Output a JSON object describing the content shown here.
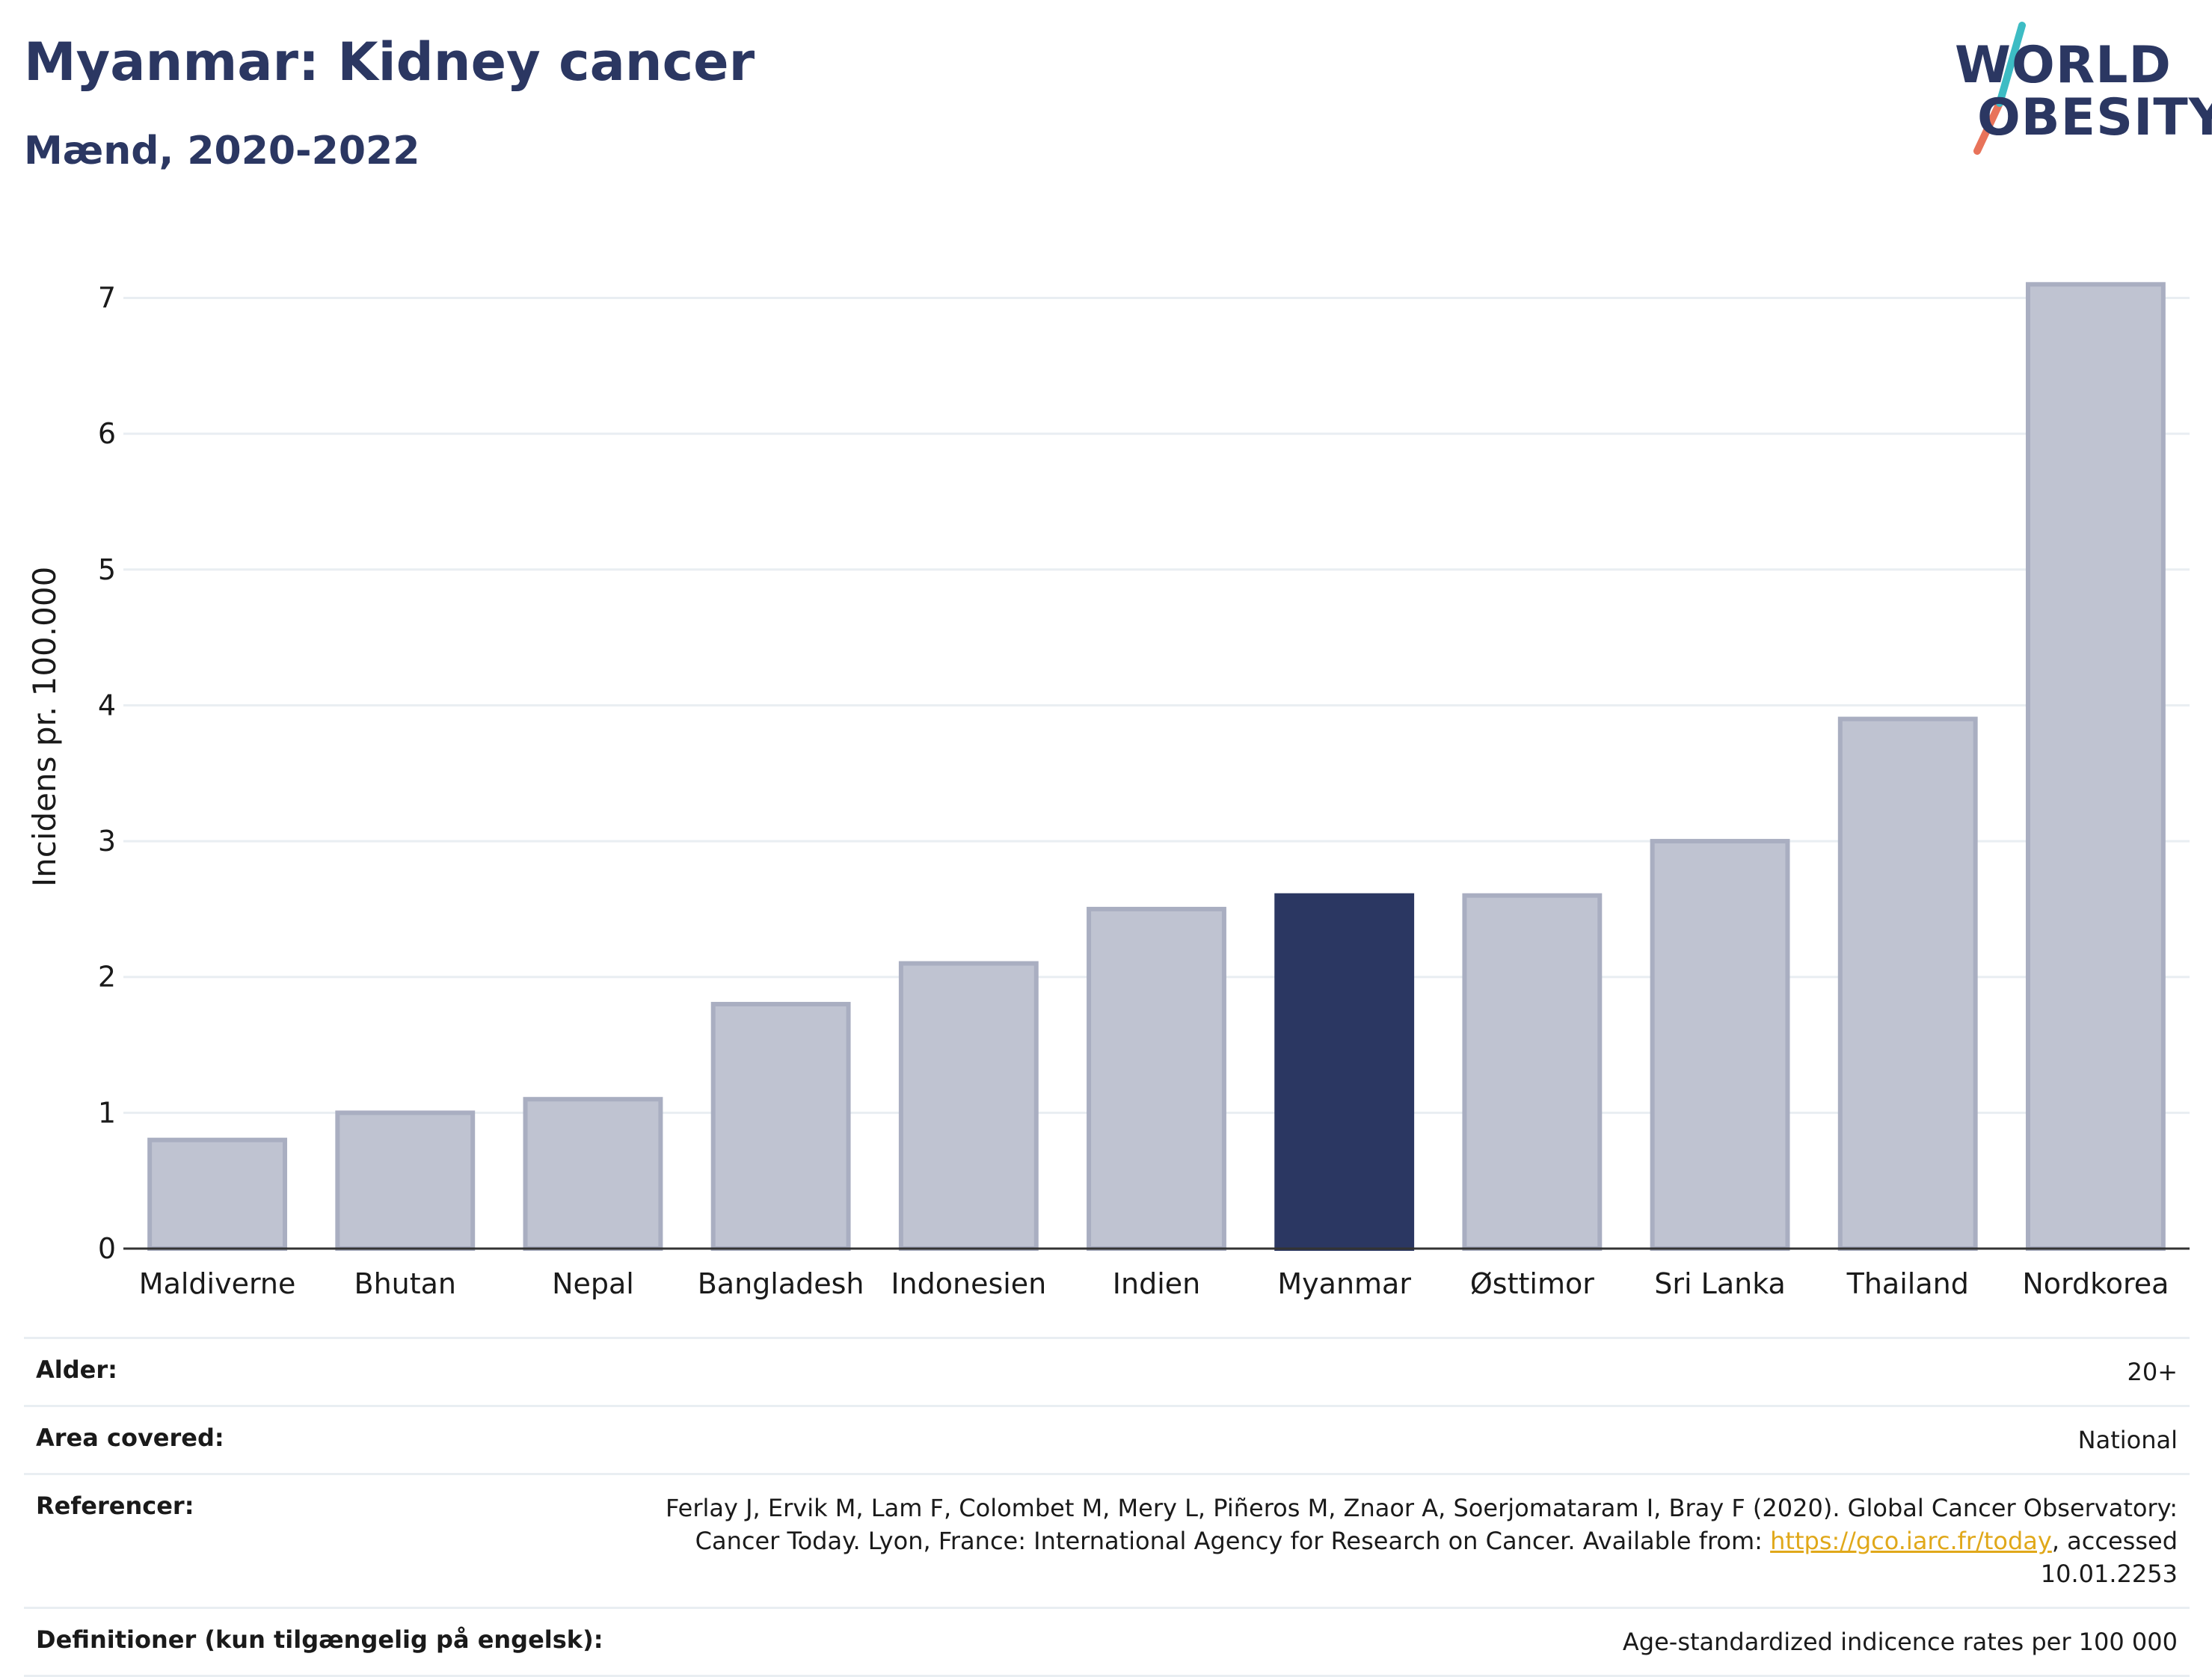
{
  "header": {
    "title": "Myanmar: Kidney cancer",
    "subtitle": "Mænd, 2020-2022"
  },
  "logo": {
    "line1": "WORLD",
    "line2": "OBESITY"
  },
  "chart_data": {
    "type": "bar",
    "categories": [
      "Maldiverne",
      "Bhutan",
      "Nepal",
      "Bangladesh",
      "Indonesien",
      "Indien",
      "Myanmar",
      "Østtimor",
      "Sri Lanka",
      "Thailand",
      "Nordkorea"
    ],
    "values": [
      0.8,
      1.0,
      1.1,
      1.8,
      2.1,
      2.5,
      2.6,
      2.6,
      3.0,
      3.9,
      7.1
    ],
    "highlight": "Myanmar",
    "ylabel": "Incidens pr. 100.000",
    "ylim": [
      0,
      7.3
    ],
    "yticks": [
      0,
      1,
      2,
      3,
      4,
      5,
      6,
      7
    ],
    "grid": true,
    "colors": {
      "bar": "#bfc3d1",
      "bar_edge": "#a9aec1",
      "highlight": "#2b3762",
      "grid": "#e9eef2",
      "axis": "#333333"
    }
  },
  "meta": [
    {
      "label": "Alder:",
      "value": "20+"
    },
    {
      "label": "Area covered:",
      "value": "National"
    },
    {
      "label": "Referencer:",
      "value_before": "Ferlay J, Ervik M, Lam F, Colombet M, Mery L, Piñeros M, Znaor A, Soerjomataram I, Bray F (2020). Global Cancer Observatory: Cancer Today. Lyon, France: International Agency for Research on Cancer. Available from: ",
      "link": "https://gco.iarc.fr/today",
      "value_after": ", accessed 10.01.2253"
    },
    {
      "label": "Definitioner (kun tilgængelig på engelsk):",
      "value": "Age-standardized indicence rates per 100 000"
    }
  ],
  "brand_colors": {
    "navy": "#2b3762",
    "teal": "#3dbcc4",
    "coral": "#e8735a",
    "link": "#e0a81a"
  }
}
